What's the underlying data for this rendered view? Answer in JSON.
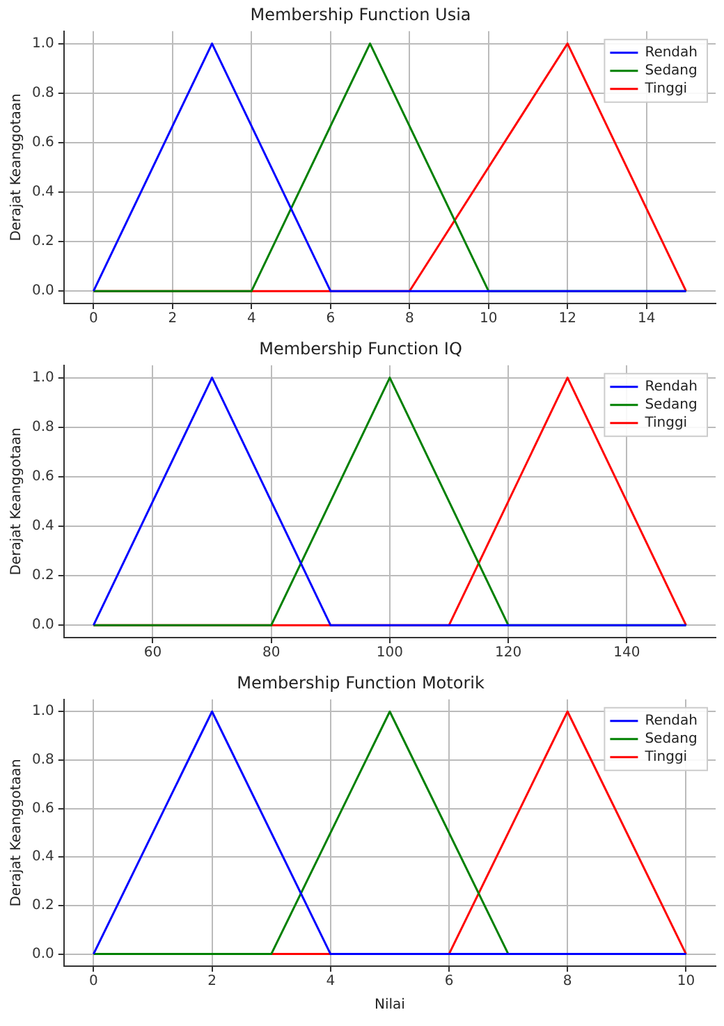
{
  "chart_data": [
    {
      "type": "line",
      "title": "Membership Function Usia",
      "ylabel": "Derajat Keanggotaan",
      "legend": "top right",
      "grid": true,
      "marker": "none",
      "line_style": "solid",
      "xlim": [
        -0.75,
        15.75
      ],
      "xticks": [
        0,
        2,
        4,
        6,
        8,
        10,
        12,
        14
      ],
      "ylim": [
        -0.05,
        1.05
      ],
      "yticks": [
        {
          "value": 0,
          "label": "0.0"
        },
        {
          "value": 0.2,
          "label": "0.2"
        },
        {
          "value": 0.4,
          "label": "0.4"
        },
        {
          "value": 0.6,
          "label": "0.6"
        },
        {
          "value": 0.8,
          "label": "0.8"
        },
        {
          "value": 1,
          "label": "1.0"
        }
      ],
      "series": [
        {
          "name": "Rendah",
          "color": "#0000ff",
          "x": [
            0,
            3,
            6,
            15
          ],
          "values": [
            0,
            1,
            0,
            0
          ]
        },
        {
          "name": "Sedang",
          "color": "#008000",
          "x": [
            0,
            4,
            7,
            10,
            15
          ],
          "values": [
            0,
            0,
            1,
            0,
            0
          ]
        },
        {
          "name": "Tinggi",
          "color": "#ff0000",
          "x": [
            0,
            8,
            12,
            15
          ],
          "values": [
            0,
            0,
            1,
            0
          ]
        }
      ]
    },
    {
      "type": "line",
      "title": "Membership Function IQ",
      "ylabel": "Derajat Keanggotaan",
      "legend": "top right",
      "grid": true,
      "marker": "none",
      "line_style": "solid",
      "xlim": [
        45,
        155
      ],
      "xticks": [
        60,
        80,
        100,
        120,
        140
      ],
      "ylim": [
        -0.05,
        1.05
      ],
      "yticks": [
        {
          "value": 0,
          "label": "0.0"
        },
        {
          "value": 0.2,
          "label": "0.2"
        },
        {
          "value": 0.4,
          "label": "0.4"
        },
        {
          "value": 0.6,
          "label": "0.6"
        },
        {
          "value": 0.8,
          "label": "0.8"
        },
        {
          "value": 1,
          "label": "1.0"
        }
      ],
      "series": [
        {
          "name": "Rendah",
          "color": "#0000ff",
          "x": [
            50,
            70,
            90,
            150
          ],
          "values": [
            0,
            1,
            0,
            0
          ]
        },
        {
          "name": "Sedang",
          "color": "#008000",
          "x": [
            50,
            80,
            100,
            120,
            150
          ],
          "values": [
            0,
            0,
            1,
            0,
            0
          ]
        },
        {
          "name": "Tinggi",
          "color": "#ff0000",
          "x": [
            50,
            110,
            130,
            150
          ],
          "values": [
            0,
            0,
            1,
            0
          ]
        }
      ]
    },
    {
      "type": "line",
      "title": "Membership Function Motorik",
      "xlabel": "Nilai",
      "ylabel": "Derajat Keanggotaan",
      "legend": "top right",
      "grid": true,
      "marker": "none",
      "line_style": "solid",
      "xlim": [
        -0.5,
        10.5
      ],
      "xticks": [
        0,
        2,
        4,
        6,
        8,
        10
      ],
      "ylim": [
        -0.05,
        1.05
      ],
      "yticks": [
        {
          "value": 0,
          "label": "0.0"
        },
        {
          "value": 0.2,
          "label": "0.2"
        },
        {
          "value": 0.4,
          "label": "0.4"
        },
        {
          "value": 0.6,
          "label": "0.6"
        },
        {
          "value": 0.8,
          "label": "0.8"
        },
        {
          "value": 1,
          "label": "1.0"
        }
      ],
      "series": [
        {
          "name": "Rendah",
          "color": "#0000ff",
          "x": [
            0,
            2,
            4,
            10
          ],
          "values": [
            0,
            1,
            0,
            0
          ]
        },
        {
          "name": "Sedang",
          "color": "#008000",
          "x": [
            0,
            3,
            5,
            7,
            10
          ],
          "values": [
            0,
            0,
            1,
            0,
            0
          ]
        },
        {
          "name": "Tinggi",
          "color": "#ff0000",
          "x": [
            0,
            6,
            8,
            10
          ],
          "values": [
            0,
            0,
            1,
            0
          ]
        }
      ]
    }
  ]
}
